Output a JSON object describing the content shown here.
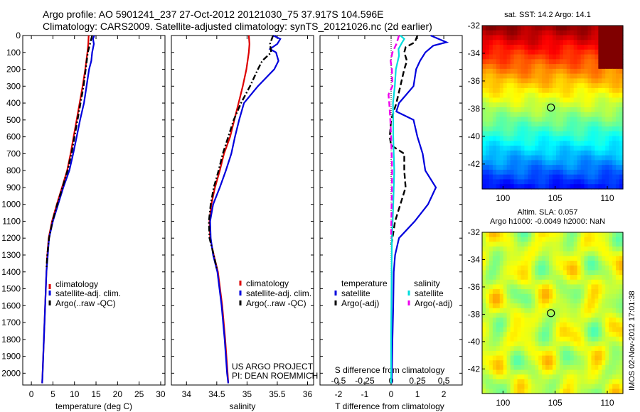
{
  "header": {
    "line1": "Argo profile: AO 5901241_237 27-Oct-2012 20121030_75 37.917S 104.596E",
    "line2": "Climatology: CARS2009. Satellite-adjusted climatology: synTS_20121026.nc (2d earlier)"
  },
  "colors": {
    "climatology": "#dd0000",
    "satellite": "#0000dd",
    "argo": "#000000",
    "sat_sal": "#00dddd",
    "argo_sal": "#ee00ee"
  },
  "chart_data": [
    {
      "type": "line",
      "name": "temperature",
      "xlabel": "temperature (deg C)",
      "ylabel": "",
      "xlim": [
        -2,
        31
      ],
      "ylim": [
        2070,
        0
      ],
      "xticks": [
        0,
        5,
        10,
        15,
        20,
        25,
        30
      ],
      "yticks": [
        0,
        100,
        200,
        300,
        400,
        500,
        600,
        700,
        800,
        900,
        1000,
        1100,
        1200,
        1300,
        1400,
        1500,
        1600,
        1700,
        1800,
        1900,
        2000
      ],
      "legend": [
        "climatology",
        "satellite-adj. clim.",
        "Argo(..raw -QC)"
      ],
      "legend_position": "lower-left",
      "series": [
        {
          "name": "climatology",
          "color": "#dd0000",
          "style": "solid",
          "depth": [
            0,
            50,
            100,
            200,
            300,
            400,
            500,
            600,
            700,
            800,
            900,
            1000,
            1100,
            1200,
            1300,
            1400,
            1600,
            1800,
            2000,
            2060
          ],
          "values": [
            13.3,
            13.2,
            13.0,
            12.5,
            11.9,
            11.2,
            10.5,
            9.8,
            9.1,
            8.3,
            7.1,
            5.9,
            4.8,
            4.0,
            3.7,
            3.5,
            3.2,
            2.9,
            2.6,
            2.5
          ]
        },
        {
          "name": "satellite-adj. clim.",
          "color": "#0000dd",
          "style": "solid",
          "depth": [
            0,
            20,
            50,
            100,
            150,
            200,
            300,
            400,
            500,
            600,
            700,
            800,
            900,
            1000,
            1100,
            1200,
            1300,
            1400,
            1600,
            1800,
            2000,
            2060
          ],
          "values": [
            14.6,
            14.3,
            14.5,
            14.1,
            13.9,
            13.4,
            12.8,
            12.2,
            11.3,
            10.5,
            9.7,
            8.8,
            7.4,
            6.2,
            5.0,
            4.1,
            3.8,
            3.5,
            3.2,
            2.9,
            2.6,
            2.5
          ]
        },
        {
          "name": "Argo(..raw -QC)",
          "color": "#000000",
          "style": "dashdot",
          "depth": [
            0,
            50,
            100,
            200,
            300,
            400,
            500,
            600,
            700,
            800,
            900,
            1000,
            1100,
            1200,
            1300,
            1380
          ],
          "values": [
            14.1,
            13.6,
            13.1,
            12.6,
            12.1,
            11.4,
            10.7,
            10.0,
            9.3,
            8.4,
            7.2,
            6.0,
            4.9,
            4.1,
            3.7,
            3.5
          ]
        }
      ]
    },
    {
      "type": "line",
      "name": "salinity",
      "xlabel": "salinity",
      "xlim": [
        33.75,
        36.1
      ],
      "ylim": [
        2070,
        0
      ],
      "xticks": [
        34,
        34.5,
        35,
        35.5,
        36
      ],
      "xticklabels": [
        "34",
        "34.5",
        "35",
        "35.5",
        "36"
      ],
      "legend": [
        "climatology",
        "satellite-adj. clim.",
        "Argo(..raw -QC)"
      ],
      "legend_position": "lower-right",
      "annotations": [
        "US ARGO PROJECT",
        "PI: DEAN ROEMMICH"
      ],
      "series": [
        {
          "name": "climatology",
          "color": "#dd0000",
          "style": "solid",
          "depth": [
            0,
            50,
            100,
            200,
            300,
            400,
            500,
            600,
            700,
            800,
            900,
            1000,
            1100,
            1200,
            1300,
            1400,
            1600,
            1800,
            2000,
            2060
          ],
          "values": [
            35.03,
            35.04,
            35.03,
            34.99,
            34.93,
            34.86,
            34.79,
            34.72,
            34.62,
            34.55,
            34.47,
            34.41,
            34.38,
            34.39,
            34.45,
            34.52,
            34.59,
            34.64,
            34.68,
            34.69
          ]
        },
        {
          "name": "satellite-adj. clim.",
          "color": "#0000dd",
          "style": "solid",
          "depth": [
            0,
            20,
            50,
            80,
            100,
            150,
            200,
            300,
            400,
            500,
            600,
            700,
            800,
            900,
            1000,
            1100,
            1200,
            1300,
            1400,
            1600,
            1800,
            2000,
            2060
          ],
          "values": [
            35.43,
            35.55,
            35.5,
            35.38,
            35.48,
            35.52,
            35.45,
            35.18,
            34.95,
            34.87,
            34.8,
            34.74,
            34.65,
            34.55,
            34.44,
            34.39,
            34.4,
            34.44,
            34.51,
            34.58,
            34.63,
            34.67,
            34.69
          ]
        },
        {
          "name": "Argo(..raw -QC)",
          "color": "#000000",
          "style": "dashdot",
          "depth": [
            0,
            50,
            100,
            150,
            200,
            300,
            400,
            500,
            600,
            700,
            800,
            900,
            1000,
            1100,
            1200,
            1300,
            1380
          ],
          "values": [
            35.43,
            35.38,
            35.4,
            35.25,
            35.18,
            35.05,
            34.9,
            34.78,
            34.69,
            34.6,
            34.53,
            34.45,
            34.4,
            34.37,
            34.38,
            34.45,
            34.5
          ]
        }
      ]
    },
    {
      "type": "line",
      "name": "differences",
      "xlabel": "T difference from climatology",
      "xlabel2": "S difference from climatology",
      "xlim": [
        -2.7,
        2.7
      ],
      "ylim": [
        2070,
        0
      ],
      "xticks": [
        -2,
        -1,
        0,
        1,
        2
      ],
      "xticklabels": [
        "-2",
        "-1",
        "0",
        "1",
        "2"
      ],
      "xticks2": [
        -0.5,
        -0.25,
        0,
        0.25,
        0.5
      ],
      "xticklabels2": [
        "-0.5",
        "-0.25",
        "0",
        "0.25",
        "0.5"
      ],
      "legend_temperature_title": "temperature",
      "legend_salinity_title": "salinity",
      "legend": [
        "satellite",
        "Argo(-adj)",
        "satellite",
        "Argo(-adj)"
      ],
      "series": [
        {
          "name": "temperature satellite",
          "color": "#0000dd",
          "style": "solid",
          "depth": [
            0,
            20,
            40,
            60,
            100,
            150,
            200,
            300,
            400,
            450,
            500,
            600,
            700,
            800,
            900,
            1000,
            1100,
            1200,
            1300,
            1400,
            1600,
            1800,
            2000,
            2060
          ],
          "values": [
            1.5,
            1.8,
            2.1,
            1.6,
            1.3,
            1.1,
            0.95,
            0.85,
            0.3,
            0.2,
            0.85,
            1.0,
            1.2,
            1.3,
            1.7,
            1.4,
            0.9,
            0.3,
            0.15,
            0.1,
            0.08,
            0.05,
            0.03,
            0.02
          ]
        },
        {
          "name": "temperature Argo(-adj)",
          "color": "#000000",
          "style": "dashed",
          "depth": [
            0,
            40,
            70,
            100,
            150,
            200,
            300,
            400,
            500,
            600,
            650,
            700,
            800,
            900,
            1000,
            1100,
            1200,
            1250
          ],
          "values": [
            1.0,
            0.9,
            0.55,
            0.5,
            0.6,
            0.5,
            0.35,
            0.2,
            0.0,
            -0.05,
            0.0,
            0.5,
            0.5,
            0.55,
            0.35,
            0.15,
            0.05,
            0.0
          ]
        },
        {
          "name": "salinity satellite",
          "color": "#00dddd",
          "style": "solid",
          "depth": [
            0,
            20,
            40,
            80,
            120,
            200,
            300,
            400,
            500,
            600,
            700,
            800,
            900,
            1000,
            1100,
            1200,
            1400,
            1600,
            1800,
            2000,
            2060
          ],
          "values": [
            0.35,
            0.5,
            0.42,
            0.28,
            0.3,
            0.18,
            0.14,
            0.07,
            0.08,
            0.08,
            0.1,
            0.12,
            0.1,
            0.08,
            0.06,
            0.03,
            0.02,
            0.01,
            0.0,
            0.0,
            0.0
          ]
        },
        {
          "name": "salinity Argo(-adj)",
          "color": "#ee00ee",
          "style": "dashed",
          "depth": [
            0,
            50,
            100,
            150,
            200,
            300,
            350,
            400,
            500,
            600,
            700,
            800,
            1000,
            1200
          ],
          "values": [
            0.3,
            0.2,
            0.05,
            -0.02,
            0.03,
            0.05,
            -0.1,
            -0.07,
            -0.03,
            0.0,
            0.02,
            0.04,
            0.02,
            0.0
          ]
        }
      ]
    },
    {
      "type": "heatmap",
      "name": "sst-map",
      "title": "sat. SST: 14.2  Argo: 14.1",
      "xticks": [
        100,
        105,
        110
      ],
      "yticks": [
        -32,
        -34,
        -36,
        -38,
        -40,
        -42
      ],
      "xlim": [
        98,
        111.5
      ],
      "ylim": [
        -43.8,
        -32
      ],
      "marker": {
        "lon": 104.596,
        "lat": -37.917
      }
    },
    {
      "type": "heatmap",
      "name": "sla-map",
      "title_line1": "Altim. SLA: 0.057",
      "title_line2": "Argo h1000: -0.0049  h2000: NaN",
      "xticks": [
        100,
        105,
        110
      ],
      "yticks": [
        -32,
        -34,
        -36,
        -38,
        -40,
        -42
      ],
      "xlim": [
        98,
        111.5
      ],
      "ylim": [
        -43.8,
        -32
      ],
      "marker": {
        "lon": 104.596,
        "lat": -37.917
      }
    }
  ],
  "panel1_legend": [
    "climatology",
    "satellite-adj. clim.",
    "Argo(..raw -QC)"
  ],
  "panel2_legend": [
    "climatology",
    "satellite-adj. clim.",
    "Argo(..raw -QC)"
  ],
  "credit": [
    "US ARGO PROJECT",
    "PI: DEAN ROEMMICH"
  ],
  "footer": "IMOS 02-Nov-2012 17:01:38"
}
